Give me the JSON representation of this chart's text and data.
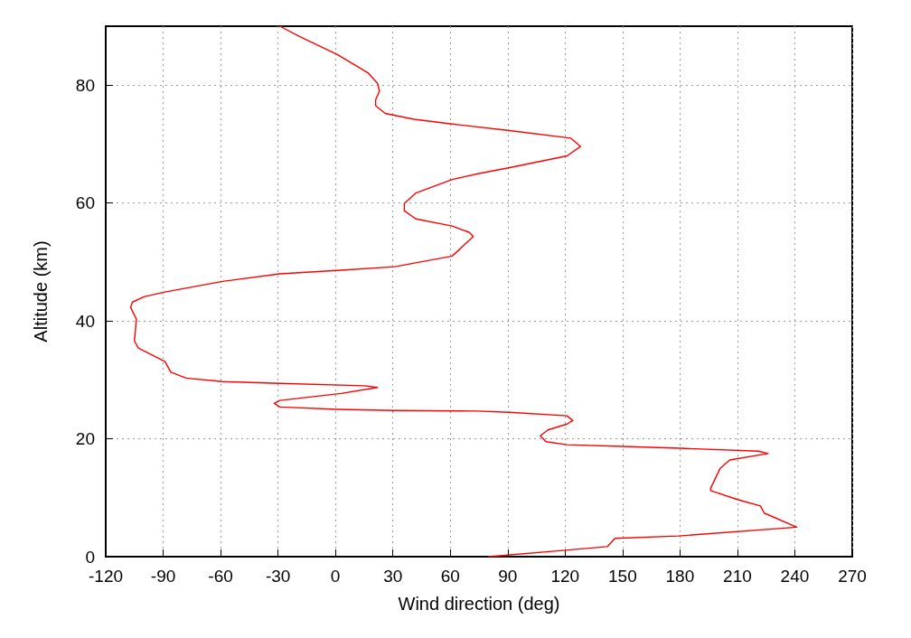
{
  "chart_data": {
    "type": "line",
    "xlabel": "Wind direction (deg)",
    "ylabel": "Altitude (km)",
    "xlim": [
      -120,
      270
    ],
    "xticks": [
      -120,
      -90,
      -60,
      -30,
      0,
      30,
      60,
      90,
      120,
      150,
      180,
      210,
      240,
      270
    ],
    "ylim": [
      0,
      90
    ],
    "yticks": [
      0,
      20,
      40,
      60,
      80
    ],
    "grid": true,
    "series": [
      {
        "color": "#ff0000",
        "x": [
          80,
          120,
          142,
          146,
          179,
          241,
          224,
          222,
          210,
          196,
          196,
          201,
          206,
          226,
          221,
          180,
          150,
          121,
          110,
          107,
          111,
          121,
          124,
          121,
          91,
          74,
          31,
          1,
          -29,
          -32,
          -29,
          3,
          22,
          15,
          -29,
          -59,
          -78,
          -86,
          -89,
          -103,
          -105,
          -104,
          -107,
          -106,
          -100,
          -89,
          -59,
          -29,
          3,
          31,
          61,
          72,
          70,
          61,
          42,
          36,
          36,
          42,
          61,
          75,
          91,
          121,
          128,
          123,
          91,
          61,
          41,
          26,
          21,
          21,
          23,
          22,
          17,
          1,
          -19,
          -29
        ],
        "values": [
          0,
          1.1,
          1.7,
          3.1,
          3.5,
          5.0,
          7.4,
          8.6,
          9.7,
          11.2,
          11.6,
          15.0,
          16.4,
          17.5,
          17.9,
          18.4,
          18.7,
          19.0,
          19.5,
          20.5,
          21.5,
          22.5,
          23.1,
          23.9,
          24.5,
          24.7,
          24.8,
          25.0,
          25.4,
          26.0,
          26.5,
          27.7,
          28.7,
          29.0,
          29.4,
          29.7,
          30.3,
          31.3,
          33.1,
          35.4,
          36.6,
          40.3,
          42.3,
          43.2,
          44.1,
          44.9,
          46.7,
          48.0,
          48.6,
          49.2,
          51.0,
          54.3,
          55.0,
          56.1,
          57.3,
          58.7,
          59.9,
          61.7,
          64.0,
          65.0,
          66.0,
          68.0,
          69.6,
          71.0,
          72.3,
          73.4,
          74.2,
          75.2,
          76.5,
          77.5,
          79.0,
          80.3,
          82.1,
          85.2,
          88.3,
          90.0
        ]
      }
    ]
  }
}
